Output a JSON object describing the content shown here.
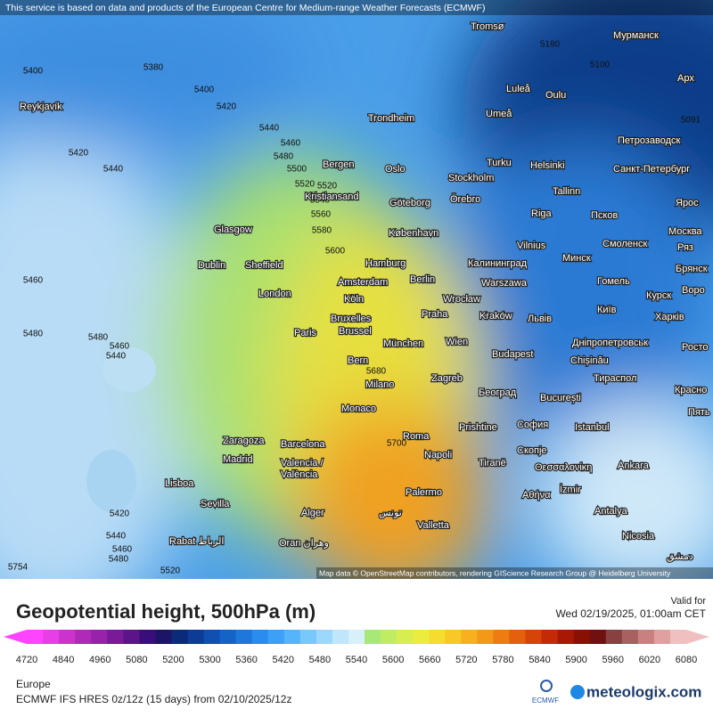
{
  "header": {
    "notice": "This service is based on data and products of the European Centre for Medium-range Weather Forecasts (ECMWF)"
  },
  "map": {
    "attribution": "Map data © OpenStreetMap contributors, rendering GIScience Research Group @ Heidelberg University",
    "cities": [
      "Tromsø",
      "Мурманск",
      "Luleå",
      "Oulu",
      "Umeå",
      "Reykjavík",
      "Trondheim",
      "Арх",
      "Петрозаводск",
      "Bergen",
      "Oslo",
      "Turku",
      "Helsinki",
      "Санкт-Петербург",
      "Stockholm",
      "Kristiansand",
      "Tallinn",
      "Göteborg",
      "Örebro",
      "Ярос",
      "Riga",
      "Псков",
      "Glasgow",
      "København",
      "Москва",
      "Vilnius",
      "Смоленск",
      "Ряз",
      "Калининград",
      "Минск",
      "Dublin",
      "Sheffield",
      "Hamburg",
      "Брянск",
      "Berlin",
      "Amsterdam",
      "Warszawa",
      "Гомель",
      "Воро",
      "London",
      "Köln",
      "Wrocław",
      "Курск",
      "Київ",
      "Bruxelles",
      "Brussel",
      "Praha",
      "Kraków",
      "Львів",
      "Харків",
      "Paris",
      "München",
      "Wien",
      "Дніпропетровськ",
      "Росто",
      "Bern",
      "Budapest",
      "Chișinău",
      "Milano",
      "Zagreb",
      "Тираспол",
      "Красно",
      "Београд",
      "București",
      "Пять",
      "Monaco",
      "Prishtine",
      "София",
      "Zaragoza",
      "Barcelona",
      "Roma",
      "Istanbul",
      "Madrid",
      "Valencia /",
      "València",
      "Napoli",
      "Tiranë",
      "Скопје",
      "Θεσσαλονίκη",
      "Ankara",
      "Lisboa",
      "İzmir",
      "Αθήνα",
      "Sevilla",
      "Palermo",
      "Alger",
      "تونس",
      "Antalya",
      "Valletta",
      "Rabat الرباط",
      "Oran وهران",
      "Nicosia",
      "دمشق"
    ],
    "contours": [
      5400,
      5380,
      5400,
      5420,
      5440,
      5460,
      5480,
      5500,
      5520,
      5520,
      5540,
      5560,
      5580,
      5600,
      5420,
      5440,
      5460,
      5480,
      5480,
      5460,
      5440,
      5420,
      5440,
      5460,
      5480,
      5520,
      5680,
      5700,
      5180,
      5100,
      5091,
      5754
    ]
  },
  "footer": {
    "title": "Geopotential height, 500hPa (m)",
    "valid_label": "Valid for",
    "valid_time": "Wed 02/19/2025, 01:00am CET",
    "legend": {
      "ticks": [
        4720,
        4840,
        4960,
        5080,
        5200,
        5300,
        5360,
        5420,
        5480,
        5540,
        5600,
        5660,
        5720,
        5780,
        5840,
        5900,
        5960,
        6020,
        6080
      ],
      "colors": [
        "#ff44ff",
        "#e83ee8",
        "#cc33cc",
        "#b02ab8",
        "#9922aa",
        "#7a1a99",
        "#5c148a",
        "#3a0e7a",
        "#1c1466",
        "#0a2a7a",
        "#0c3c96",
        "#0f50b0",
        "#1464c8",
        "#1e78dc",
        "#2a8cee",
        "#3ca0f6",
        "#55b4fa",
        "#78c8fc",
        "#9cd8fc",
        "#c0e6fc",
        "#d8f0fa",
        "#a8e878",
        "#c0ec64",
        "#d8ee50",
        "#ecec40",
        "#f4dc30",
        "#f8c828",
        "#f8b020",
        "#f49818",
        "#ee7c12",
        "#e4600c",
        "#d64408",
        "#c42a06",
        "#a81804",
        "#8a1004",
        "#701010",
        "#884040",
        "#a86060",
        "#c88080",
        "#e0a0a0",
        "#f0c0c0"
      ]
    },
    "region": "Europe",
    "model": "ECMWF IFS HRES 0z/12z (15 days)  from  02/10/2025/12z",
    "ecmwf": "ECMWF",
    "brand": "meteologix.com"
  }
}
